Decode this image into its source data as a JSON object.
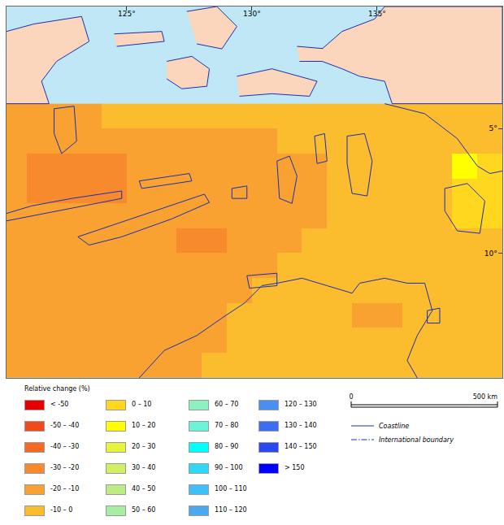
{
  "chart_data": {
    "type": "heatmap",
    "x": [
      120.5,
      121.5,
      122.5,
      123.5,
      124.5,
      125.5,
      126.5,
      127.5,
      128.5,
      129.5,
      130.5,
      131.5,
      132.5,
      133.5,
      134.5,
      135.5,
      136.5,
      137.5,
      138.5,
      139.5
    ],
    "y": [
      4.5,
      5.5,
      6.5,
      7.5,
      8.5,
      9.5,
      10.5,
      11.5,
      12.5,
      13.5,
      14.5
    ],
    "cells": [
      [
        -15,
        -15,
        -15,
        -15,
        -5,
        -5,
        -5,
        -5,
        -5,
        -5,
        -5,
        -5,
        -5,
        -5,
        -5,
        -5,
        -5,
        -5,
        -5,
        -5
      ],
      [
        -15,
        -15,
        -15,
        -15,
        -15,
        -15,
        -15,
        -15,
        -15,
        -15,
        -15,
        -5,
        -5,
        -5,
        -5,
        -5,
        -5,
        -5,
        -5,
        -5
      ],
      [
        -15,
        -25,
        -25,
        -25,
        -25,
        -15,
        -15,
        -15,
        -15,
        -15,
        -15,
        -15,
        -15,
        -5,
        -5,
        -5,
        -5,
        -5,
        15,
        5
      ],
      [
        -15,
        -25,
        -25,
        -25,
        -25,
        -15,
        -15,
        -15,
        -15,
        -15,
        -15,
        -15,
        -15,
        -5,
        -5,
        -5,
        -5,
        -5,
        5,
        5
      ],
      [
        -15,
        -15,
        -15,
        -15,
        -15,
        -15,
        -15,
        -15,
        -15,
        -15,
        -15,
        -15,
        -15,
        -5,
        -5,
        -5,
        -5,
        -5,
        5,
        5
      ],
      [
        -15,
        -15,
        -15,
        -15,
        -15,
        -15,
        -15,
        -25,
        -25,
        -15,
        -15,
        -15,
        -5,
        -5,
        -5,
        -5,
        -5,
        -5,
        -5,
        -5
      ],
      [
        -15,
        -15,
        -15,
        -15,
        -15,
        -15,
        -15,
        -15,
        -15,
        -15,
        -15,
        -5,
        -5,
        -5,
        -5,
        -5,
        -5,
        -5,
        -5,
        -5
      ],
      [
        -15,
        -15,
        -15,
        -15,
        -15,
        -15,
        -15,
        -15,
        -15,
        -15,
        -5,
        -5,
        -5,
        -5,
        -5,
        -5,
        -5,
        -5,
        -5,
        -5
      ],
      [
        -15,
        -15,
        -15,
        -15,
        -15,
        -15,
        -15,
        -15,
        -15,
        -5,
        -5,
        -5,
        -5,
        -5,
        -15,
        -15,
        -5,
        -5,
        -5,
        -5
      ],
      [
        -15,
        -15,
        -15,
        -15,
        -15,
        -15,
        -15,
        -15,
        -15,
        -5,
        -5,
        -5,
        -5,
        -5,
        -5,
        -5,
        -5,
        -5,
        -5,
        -5
      ],
      [
        -15,
        -15,
        -15,
        -15,
        -15,
        -15,
        -15,
        -15,
        -5,
        -5,
        -5,
        -5,
        -5,
        -5,
        -5,
        -5,
        -5,
        -5,
        -5,
        -5
      ]
    ],
    "xlim": [
      120.2,
      140.0
    ],
    "ylim": [
      15.0,
      0.1
    ],
    "xticks": [
      {
        "value": 125,
        "label": "125°"
      },
      {
        "value": 130,
        "label": "130°"
      },
      {
        "value": 135,
        "label": "135°"
      }
    ],
    "yticks": [
      {
        "value": 5,
        "label": "5°"
      },
      {
        "value": 10,
        "label": "10°"
      }
    ],
    "grid": false,
    "colorbar": {
      "title": "Relative change (%)",
      "classes": [
        {
          "label": "< -50",
          "min": null,
          "max": -50,
          "color": "#e60000"
        },
        {
          "label": "-50 – -40",
          "min": -50,
          "max": -40,
          "color": "#f04a1c"
        },
        {
          "label": "-40 – -30",
          "min": -40,
          "max": -30,
          "color": "#f46a24"
        },
        {
          "label": "-30 – -20",
          "min": -30,
          "max": -20,
          "color": "#f78a2c"
        },
        {
          "label": "-20 – -10",
          "min": -20,
          "max": -10,
          "color": "#f9a232"
        },
        {
          "label": "-10 – 0",
          "min": -10,
          "max": 0,
          "color": "#fbbc2e"
        },
        {
          "label": "0 – 10",
          "min": 0,
          "max": 10,
          "color": "#ffd71e"
        },
        {
          "label": "10 – 20",
          "min": 10,
          "max": 20,
          "color": "#ffff00"
        },
        {
          "label": "20 – 30",
          "min": 20,
          "max": 30,
          "color": "#e6f53c"
        },
        {
          "label": "30 – 40",
          "min": 30,
          "max": 40,
          "color": "#d2f064"
        },
        {
          "label": "40 – 50",
          "min": 40,
          "max": 50,
          "color": "#bdec84"
        },
        {
          "label": "50 – 60",
          "min": 50,
          "max": 60,
          "color": "#a6eea2"
        },
        {
          "label": "60 – 70",
          "min": 60,
          "max": 70,
          "color": "#8cf0bf"
        },
        {
          "label": "70 – 80",
          "min": 70,
          "max": 80,
          "color": "#6cf4d8"
        },
        {
          "label": "80 – 90",
          "min": 80,
          "max": 90,
          "color": "#00ffff"
        },
        {
          "label": "90 – 100",
          "min": 90,
          "max": 100,
          "color": "#30d8f8"
        },
        {
          "label": "100 – 110",
          "min": 100,
          "max": 110,
          "color": "#40c0f8"
        },
        {
          "label": "110 – 120",
          "min": 110,
          "max": 120,
          "color": "#4aa8f0"
        },
        {
          "label": "120 – 130",
          "min": 120,
          "max": 130,
          "color": "#4a8ef0"
        },
        {
          "label": "130 – 140",
          "min": 130,
          "max": 140,
          "color": "#3d6ef0"
        },
        {
          "label": "140 – 150",
          "min": 140,
          "max": 150,
          "color": "#2a48f0"
        },
        {
          "label": "> 150",
          "min": 150,
          "max": null,
          "color": "#0000ff"
        }
      ]
    },
    "land": [
      {
        "lon": [
          120.2,
          121.3,
          123.2,
          123.5,
          122.2,
          121.6,
          121.9,
          120.2
        ],
        "lat": [
          1.1,
          0.8,
          0.5,
          1.5,
          2.3,
          3.1,
          4.0,
          4.0
        ]
      },
      {
        "lon": [
          124.5,
          126.4,
          126.5,
          124.6
        ],
        "lat": [
          1.2,
          1.1,
          1.5,
          1.7
        ]
      },
      {
        "lon": [
          126.6,
          127.6,
          128.3,
          128.2,
          127.2,
          126.6
        ],
        "lat": [
          2.3,
          2.1,
          2.6,
          3.3,
          3.4,
          3.0
        ]
      },
      {
        "lon": [
          129.4,
          130.8,
          132.6,
          132.3,
          130.8,
          129.5
        ],
        "lat": [
          2.9,
          2.6,
          3.1,
          3.7,
          3.6,
          3.7
        ]
      },
      {
        "lon": [
          127.4,
          128.6,
          129.4,
          128.8,
          127.8
        ],
        "lat": [
          0.3,
          0.1,
          0.9,
          1.8,
          1.6
        ]
      },
      {
        "lon": [
          131.8,
          133.0,
          132.9,
          131.9
        ],
        "lat": [
          1.7,
          1.8,
          2.3,
          2.3
        ]
      },
      {
        "lon": [
          132.8,
          133.6,
          134.9,
          135.3,
          140.0,
          140.0,
          135.6,
          135.3,
          134.3,
          133.6,
          132.8
        ],
        "lat": [
          1.8,
          1.1,
          0.6,
          0.1,
          0.1,
          4.0,
          4.0,
          3.1,
          2.9,
          2.6,
          2.3
        ]
      }
    ],
    "coastlines": [
      {
        "lon": [
          123.05,
          124.5,
          126.5,
          128.1,
          128.3,
          126.8,
          124.8,
          123.5,
          123.05
        ],
        "lat": [
          9.34,
          8.85,
          8.19,
          7.63,
          7.96,
          8.62,
          9.34,
          9.67,
          9.34
        ]
      },
      {
        "lon": [
          120.2,
          121.2,
          122.8,
          124.8,
          124.8,
          122.8,
          121.2,
          120.2
        ],
        "lat": [
          8.4,
          8.1,
          7.8,
          7.5,
          7.8,
          8.2,
          8.5,
          8.7
        ]
      },
      {
        "lon": [
          125.5,
          127.5,
          127.6,
          125.6,
          125.5
        ],
        "lat": [
          7.1,
          6.8,
          7.1,
          7.4,
          7.1
        ]
      },
      {
        "lon": [
          129.2,
          129.8,
          129.8,
          129.2,
          129.2
        ],
        "lat": [
          7.4,
          7.3,
          7.8,
          7.8,
          7.4
        ]
      },
      {
        "lon": [
          131.0,
          131.5,
          131.8,
          131.6,
          131.1,
          131.0
        ],
        "lat": [
          6.3,
          6.1,
          6.9,
          8.0,
          7.8,
          6.3
        ]
      },
      {
        "lon": [
          132.5,
          132.9,
          133.0,
          132.6,
          132.5
        ],
        "lat": [
          5.3,
          5.2,
          6.3,
          6.4,
          5.3
        ]
      },
      {
        "lon": [
          133.8,
          134.5,
          134.8,
          134.6,
          134.0,
          133.8,
          133.8
        ],
        "lat": [
          5.3,
          5.2,
          6.3,
          7.7,
          7.6,
          6.4,
          5.3
        ]
      },
      {
        "lon": [
          137.7,
          138.6,
          139.3,
          139.1,
          138.2,
          137.7,
          137.7
        ],
        "lat": [
          7.4,
          7.2,
          7.9,
          9.2,
          9.1,
          8.3,
          7.4
        ]
      },
      {
        "lon": [
          135.3,
          136.9,
          138.2,
          139.0,
          139.5,
          140.0
        ],
        "lat": [
          4.0,
          4.4,
          5.4,
          6.5,
          6.8,
          6.7
        ]
      },
      {
        "lon": [
          122.1,
          122.9,
          123.0,
          122.4,
          122.1,
          122.1
        ],
        "lat": [
          4.2,
          4.1,
          5.5,
          6.0,
          5.2,
          4.2
        ]
      },
      {
        "lon": [
          125.5,
          126.5,
          127.8,
          128.8,
          129.7,
          130.4,
          131.0,
          132.0,
          133.0,
          134.0,
          134.3,
          135.3,
          136.2,
          136.9,
          137.2,
          136.6,
          136.2,
          136.6
        ],
        "lat": [
          15.0,
          13.9,
          13.3,
          12.6,
          12.0,
          11.3,
          11.2,
          11.0,
          11.3,
          11.6,
          11.2,
          11.0,
          11.2,
          11.2,
          12.3,
          13.3,
          14.3,
          15.0
        ]
      },
      {
        "lon": [
          129.8,
          131.0,
          131.0,
          129.9,
          129.8
        ],
        "lat": [
          10.9,
          10.8,
          11.3,
          11.4,
          10.9
        ]
      },
      {
        "lon": [
          137.0,
          137.5,
          137.5,
          137.0,
          137.0
        ],
        "lat": [
          12.3,
          12.2,
          12.8,
          12.8,
          12.3
        ]
      }
    ],
    "scale_bar": {
      "ticks": [
        {
          "value": 0,
          "label": "0"
        },
        {
          "value": 500,
          "label": "500 km"
        }
      ]
    },
    "line_legend": [
      {
        "label": "Coastline",
        "line_style": "solid"
      },
      {
        "label": "International boundary",
        "line_style": "dashdot"
      }
    ]
  }
}
